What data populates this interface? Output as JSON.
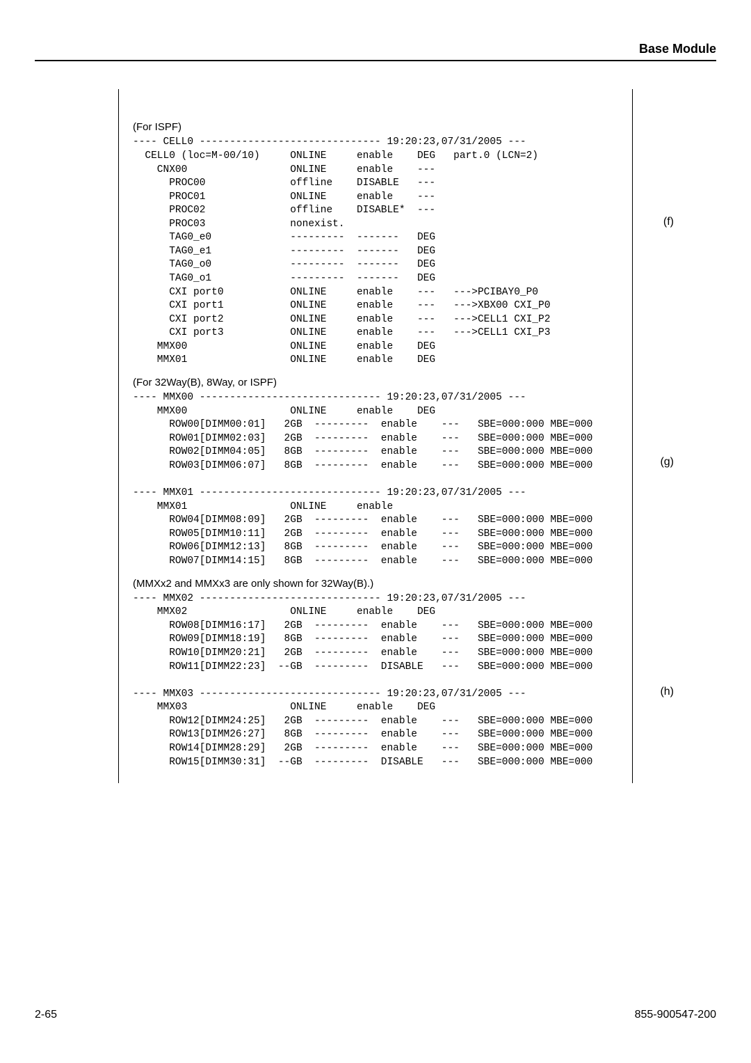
{
  "header": {
    "title": "Base Module"
  },
  "section_f": {
    "note": "(For ISPF)",
    "header_name": "CELL0",
    "timestamp": "19:20:23,07/31/2005",
    "label": "(f)",
    "rows": [
      {
        "name": "CELL0 (loc=M-00/10)",
        "c1": "ONLINE",
        "c2": "enable",
        "c3": "DEG",
        "c4": "part.0 (LCN=2)"
      },
      {
        "name": "  CNX00",
        "c1": "ONLINE",
        "c2": "enable",
        "c3": "---",
        "c4": ""
      },
      {
        "name": "    PROC00",
        "c1": "offline",
        "c2": "DISABLE",
        "c3": "---",
        "c4": ""
      },
      {
        "name": "    PROC01",
        "c1": "ONLINE",
        "c2": "enable",
        "c3": "---",
        "c4": ""
      },
      {
        "name": "    PROC02",
        "c1": "offline",
        "c2": "DISABLE*",
        "c3": "---",
        "c4": ""
      },
      {
        "name": "    PROC03",
        "c1": "nonexist.",
        "c2": "",
        "c3": "",
        "c4": ""
      },
      {
        "name": "    TAG0_e0",
        "c1": "---------",
        "c2": "-------",
        "c3": "DEG",
        "c4": ""
      },
      {
        "name": "    TAG0_e1",
        "c1": "---------",
        "c2": "-------",
        "c3": "DEG",
        "c4": ""
      },
      {
        "name": "    TAG0_o0",
        "c1": "---------",
        "c2": "-------",
        "c3": "DEG",
        "c4": ""
      },
      {
        "name": "    TAG0_o1",
        "c1": "---------",
        "c2": "-------",
        "c3": "DEG",
        "c4": ""
      },
      {
        "name": "    CXI port0",
        "c1": "ONLINE",
        "c2": "enable",
        "c3": "---",
        "c4": "--->PCIBAY0_P0"
      },
      {
        "name": "    CXI port1",
        "c1": "ONLINE",
        "c2": "enable",
        "c3": "---",
        "c4": "--->XBX00 CXI_P0"
      },
      {
        "name": "    CXI port2",
        "c1": "ONLINE",
        "c2": "enable",
        "c3": "---",
        "c4": "--->CELL1 CXI_P2"
      },
      {
        "name": "    CXI port3",
        "c1": "ONLINE",
        "c2": "enable",
        "c3": "---",
        "c4": "--->CELL1 CXI_P3"
      },
      {
        "name": "  MMX00",
        "c1": "ONLINE",
        "c2": "enable",
        "c3": "DEG",
        "c4": ""
      },
      {
        "name": "  MMX01",
        "c1": "ONLINE",
        "c2": "enable",
        "c3": "DEG",
        "c4": ""
      }
    ]
  },
  "section_g": {
    "note": "(For 32Way(B), 8Way, or ISPF)",
    "label": "(g)",
    "block1": {
      "header_name": "MMX00",
      "timestamp": "19:20:23,07/31/2005",
      "title_row": {
        "name": "  MMX00",
        "c1": "ONLINE",
        "c2": "enable",
        "c3": "DEG"
      },
      "rows": [
        {
          "name": "    ROW00[DIMM00:01]",
          "size": "2GB",
          "dash": "---------",
          "c2": "enable",
          "c3": "---",
          "c4": "SBE=000:000 MBE=000"
        },
        {
          "name": "    ROW01[DIMM02:03]",
          "size": "2GB",
          "dash": "---------",
          "c2": "enable",
          "c3": "---",
          "c4": "SBE=000:000 MBE=000"
        },
        {
          "name": "    ROW02[DIMM04:05]",
          "size": "8GB",
          "dash": "---------",
          "c2": "enable",
          "c3": "---",
          "c4": "SBE=000:000 MBE=000"
        },
        {
          "name": "    ROW03[DIMM06:07]",
          "size": "8GB",
          "dash": "---------",
          "c2": "enable",
          "c3": "---",
          "c4": "SBE=000:000 MBE=000"
        }
      ]
    },
    "block2": {
      "header_name": "MMX01",
      "timestamp": "19:20:23,07/31/2005",
      "title_row": {
        "name": "  MMX01",
        "c1": "ONLINE",
        "c2": "enable",
        "c3": ""
      },
      "rows": [
        {
          "name": "    ROW04[DIMM08:09]",
          "size": "2GB",
          "dash": "---------",
          "c2": "enable",
          "c3": "---",
          "c4": "SBE=000:000 MBE=000"
        },
        {
          "name": "    ROW05[DIMM10:11]",
          "size": "2GB",
          "dash": "---------",
          "c2": "enable",
          "c3": "---",
          "c4": "SBE=000:000 MBE=000"
        },
        {
          "name": "    ROW06[DIMM12:13]",
          "size": "8GB",
          "dash": "---------",
          "c2": "enable",
          "c3": "---",
          "c4": "SBE=000:000 MBE=000"
        },
        {
          "name": "    ROW07[DIMM14:15]",
          "size": "8GB",
          "dash": "---------",
          "c2": "enable",
          "c3": "---",
          "c4": "SBE=000:000 MBE=000"
        }
      ]
    }
  },
  "section_h": {
    "note": "(MMXx2 and MMXx3 are only shown for 32Way(B).)",
    "label": "(h)",
    "block1": {
      "header_name": "MMX02",
      "timestamp": "19:20:23,07/31/2005",
      "title_row": {
        "name": "  MMX02",
        "c1": "ONLINE",
        "c2": "enable",
        "c3": "DEG"
      },
      "rows": [
        {
          "name": "    ROW08[DIMM16:17]",
          "size": "2GB",
          "dash": "---------",
          "c2": "enable",
          "c3": "---",
          "c4": "SBE=000:000 MBE=000"
        },
        {
          "name": "    ROW09[DIMM18:19]",
          "size": "8GB",
          "dash": "---------",
          "c2": "enable",
          "c3": "---",
          "c4": "SBE=000:000 MBE=000"
        },
        {
          "name": "    ROW10[DIMM20:21]",
          "size": "2GB",
          "dash": "---------",
          "c2": "enable",
          "c3": "---",
          "c4": "SBE=000:000 MBE=000"
        },
        {
          "name": "    ROW11[DIMM22:23]",
          "size": "--GB",
          "dash": "---------",
          "c2": "DISABLE",
          "c3": "---",
          "c4": "SBE=000:000 MBE=000"
        }
      ]
    },
    "block2": {
      "header_name": "MMX03",
      "timestamp": "19:20:23,07/31/2005",
      "title_row": {
        "name": "  MMX03",
        "c1": "ONLINE",
        "c2": "enable",
        "c3": "DEG"
      },
      "rows": [
        {
          "name": "    ROW12[DIMM24:25]",
          "size": "2GB",
          "dash": "---------",
          "c2": "enable",
          "c3": "---",
          "c4": "SBE=000:000 MBE=000"
        },
        {
          "name": "    ROW13[DIMM26:27]",
          "size": "8GB",
          "dash": "---------",
          "c2": "enable",
          "c3": "---",
          "c4": "SBE=000:000 MBE=000"
        },
        {
          "name": "    ROW14[DIMM28:29]",
          "size": "2GB",
          "dash": "---------",
          "c2": "enable",
          "c3": "---",
          "c4": "SBE=000:000 MBE=000"
        },
        {
          "name": "    ROW15[DIMM30:31]",
          "size": "--GB",
          "dash": "---------",
          "c2": "DISABLE",
          "c3": "---",
          "c4": "SBE=000:000 MBE=000"
        }
      ]
    }
  },
  "footer": {
    "page": "2-65",
    "docnum": "855-900547-200"
  },
  "styling": {
    "col_name_width": 22,
    "col_size_width": 6,
    "col_c1_width": 11,
    "col_c2_width": 10,
    "col_c3_width": 6
  }
}
